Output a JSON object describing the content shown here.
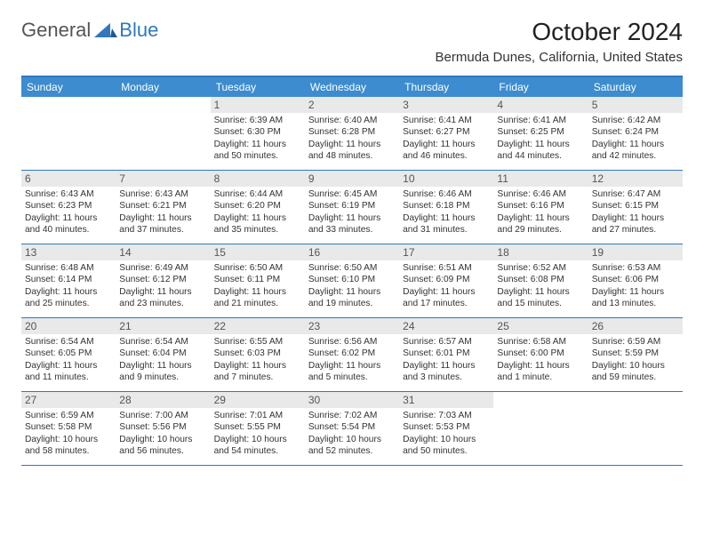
{
  "brand": {
    "textA": "General",
    "textB": "Blue"
  },
  "title": {
    "month": "October 2024",
    "location": "Bermuda Dunes, California, United States"
  },
  "colors": {
    "headerBlue": "#3c8ccf",
    "ruleBlue": "#2f78bf",
    "dayBarBg": "#e9e9e9",
    "text": "#222222"
  },
  "dayNames": [
    "Sunday",
    "Monday",
    "Tuesday",
    "Wednesday",
    "Thursday",
    "Friday",
    "Saturday"
  ],
  "layout": {
    "columns": 7,
    "rows": 5,
    "cellFontSizePt": 7.7,
    "dayNumFontSizePt": 9,
    "headerFontSizePt": 9
  },
  "weeks": [
    [
      null,
      null,
      {
        "d": "1",
        "sunrise": "6:39 AM",
        "sunset": "6:30 PM",
        "daylight": "11 hours and 50 minutes."
      },
      {
        "d": "2",
        "sunrise": "6:40 AM",
        "sunset": "6:28 PM",
        "daylight": "11 hours and 48 minutes."
      },
      {
        "d": "3",
        "sunrise": "6:41 AM",
        "sunset": "6:27 PM",
        "daylight": "11 hours and 46 minutes."
      },
      {
        "d": "4",
        "sunrise": "6:41 AM",
        "sunset": "6:25 PM",
        "daylight": "11 hours and 44 minutes."
      },
      {
        "d": "5",
        "sunrise": "6:42 AM",
        "sunset": "6:24 PM",
        "daylight": "11 hours and 42 minutes."
      }
    ],
    [
      {
        "d": "6",
        "sunrise": "6:43 AM",
        "sunset": "6:23 PM",
        "daylight": "11 hours and 40 minutes."
      },
      {
        "d": "7",
        "sunrise": "6:43 AM",
        "sunset": "6:21 PM",
        "daylight": "11 hours and 37 minutes."
      },
      {
        "d": "8",
        "sunrise": "6:44 AM",
        "sunset": "6:20 PM",
        "daylight": "11 hours and 35 minutes."
      },
      {
        "d": "9",
        "sunrise": "6:45 AM",
        "sunset": "6:19 PM",
        "daylight": "11 hours and 33 minutes."
      },
      {
        "d": "10",
        "sunrise": "6:46 AM",
        "sunset": "6:18 PM",
        "daylight": "11 hours and 31 minutes."
      },
      {
        "d": "11",
        "sunrise": "6:46 AM",
        "sunset": "6:16 PM",
        "daylight": "11 hours and 29 minutes."
      },
      {
        "d": "12",
        "sunrise": "6:47 AM",
        "sunset": "6:15 PM",
        "daylight": "11 hours and 27 minutes."
      }
    ],
    [
      {
        "d": "13",
        "sunrise": "6:48 AM",
        "sunset": "6:14 PM",
        "daylight": "11 hours and 25 minutes."
      },
      {
        "d": "14",
        "sunrise": "6:49 AM",
        "sunset": "6:12 PM",
        "daylight": "11 hours and 23 minutes."
      },
      {
        "d": "15",
        "sunrise": "6:50 AM",
        "sunset": "6:11 PM",
        "daylight": "11 hours and 21 minutes."
      },
      {
        "d": "16",
        "sunrise": "6:50 AM",
        "sunset": "6:10 PM",
        "daylight": "11 hours and 19 minutes."
      },
      {
        "d": "17",
        "sunrise": "6:51 AM",
        "sunset": "6:09 PM",
        "daylight": "11 hours and 17 minutes."
      },
      {
        "d": "18",
        "sunrise": "6:52 AM",
        "sunset": "6:08 PM",
        "daylight": "11 hours and 15 minutes."
      },
      {
        "d": "19",
        "sunrise": "6:53 AM",
        "sunset": "6:06 PM",
        "daylight": "11 hours and 13 minutes."
      }
    ],
    [
      {
        "d": "20",
        "sunrise": "6:54 AM",
        "sunset": "6:05 PM",
        "daylight": "11 hours and 11 minutes."
      },
      {
        "d": "21",
        "sunrise": "6:54 AM",
        "sunset": "6:04 PM",
        "daylight": "11 hours and 9 minutes."
      },
      {
        "d": "22",
        "sunrise": "6:55 AM",
        "sunset": "6:03 PM",
        "daylight": "11 hours and 7 minutes."
      },
      {
        "d": "23",
        "sunrise": "6:56 AM",
        "sunset": "6:02 PM",
        "daylight": "11 hours and 5 minutes."
      },
      {
        "d": "24",
        "sunrise": "6:57 AM",
        "sunset": "6:01 PM",
        "daylight": "11 hours and 3 minutes."
      },
      {
        "d": "25",
        "sunrise": "6:58 AM",
        "sunset": "6:00 PM",
        "daylight": "11 hours and 1 minute."
      },
      {
        "d": "26",
        "sunrise": "6:59 AM",
        "sunset": "5:59 PM",
        "daylight": "10 hours and 59 minutes."
      }
    ],
    [
      {
        "d": "27",
        "sunrise": "6:59 AM",
        "sunset": "5:58 PM",
        "daylight": "10 hours and 58 minutes."
      },
      {
        "d": "28",
        "sunrise": "7:00 AM",
        "sunset": "5:56 PM",
        "daylight": "10 hours and 56 minutes."
      },
      {
        "d": "29",
        "sunrise": "7:01 AM",
        "sunset": "5:55 PM",
        "daylight": "10 hours and 54 minutes."
      },
      {
        "d": "30",
        "sunrise": "7:02 AM",
        "sunset": "5:54 PM",
        "daylight": "10 hours and 52 minutes."
      },
      {
        "d": "31",
        "sunrise": "7:03 AM",
        "sunset": "5:53 PM",
        "daylight": "10 hours and 50 minutes."
      },
      null,
      null
    ]
  ]
}
